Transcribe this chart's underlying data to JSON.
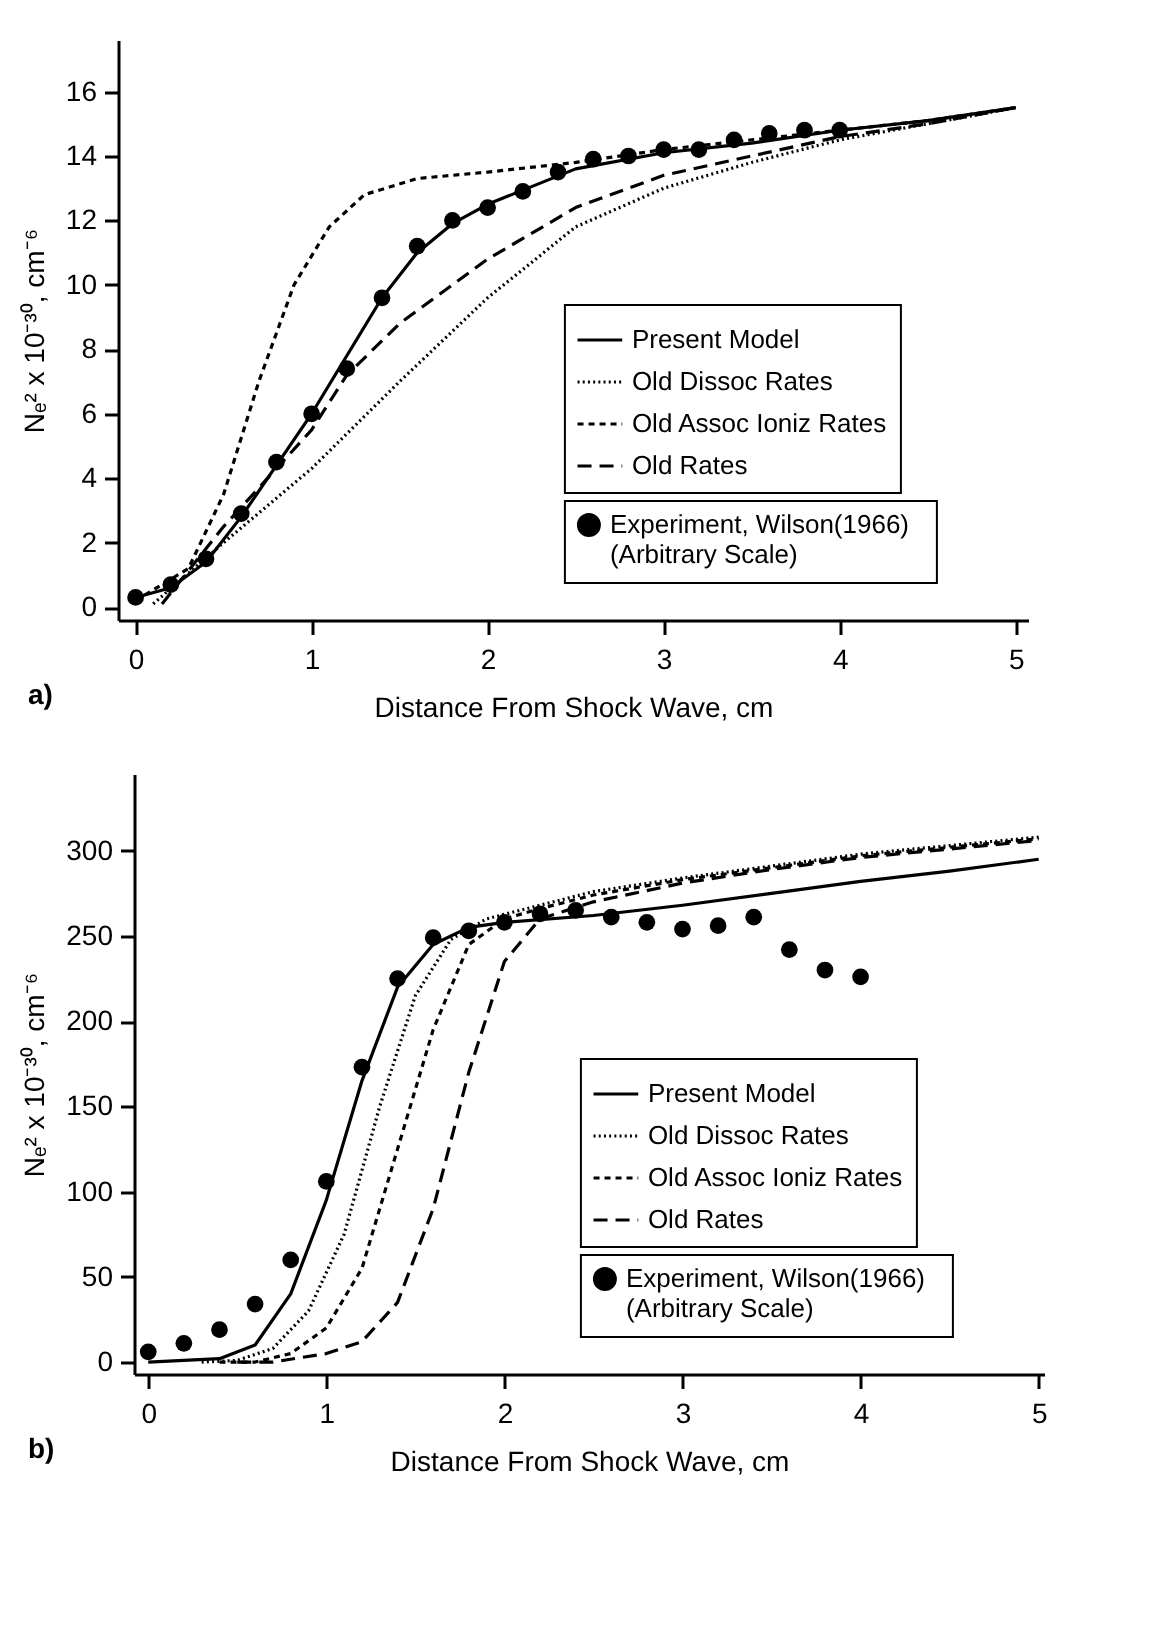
{
  "chart_data": [
    {
      "type": "line",
      "xlabel": "Distance From Shock Wave, cm",
      "ylabel": "Nₑ² x 10⁻³⁰, cm⁻⁶",
      "xlim": [
        -0.1,
        5.07
      ],
      "xticks": [
        0,
        1,
        2,
        3,
        4,
        5
      ],
      "ylim": [
        -0.4,
        17.6
      ],
      "yticks": [
        0,
        2,
        4,
        6,
        8,
        10,
        12,
        14,
        16
      ],
      "legend": "bottom right",
      "annotations": [
        "a)"
      ],
      "series": [
        {
          "name": "Present Model",
          "color": "#000000",
          "line_style": "solid",
          "x": [
            0,
            0.2,
            0.4,
            0.6,
            0.8,
            1.0,
            1.2,
            1.4,
            1.6,
            1.8,
            2.0,
            2.5,
            3.0,
            3.5,
            4.0,
            4.5,
            5.0
          ],
          "values": [
            0.3,
            0.6,
            1.4,
            2.8,
            4.4,
            6.0,
            7.8,
            9.6,
            11.0,
            11.9,
            12.5,
            13.6,
            14.1,
            14.4,
            14.8,
            15.1,
            15.5
          ]
        },
        {
          "name": "Old Dissoc Rates",
          "color": "#000000",
          "line_style": "dotted",
          "x": [
            0.1,
            0.5,
            1.0,
            1.5,
            2.0,
            2.5,
            3.0,
            3.5,
            4.0,
            4.5,
            5.0
          ],
          "values": [
            0.1,
            2.0,
            4.3,
            7.0,
            9.6,
            11.8,
            13.0,
            13.8,
            14.5,
            15.0,
            15.5
          ]
        },
        {
          "name": "Old Assoc Ioniz Rates",
          "color": "#000000",
          "line_style": "dashed",
          "x": [
            0,
            0.3,
            0.5,
            0.7,
            0.9,
            1.1,
            1.3,
            1.6,
            2.0,
            2.5,
            3.0,
            3.5,
            4.0,
            4.5,
            5.0
          ],
          "values": [
            0.2,
            1.2,
            3.5,
            7.0,
            10.0,
            11.8,
            12.8,
            13.3,
            13.5,
            13.8,
            14.2,
            14.5,
            14.8,
            15.1,
            15.5
          ]
        },
        {
          "name": "Old Rates",
          "color": "#000000",
          "line_style": "dashed",
          "x": [
            0.15,
            0.5,
            1.0,
            1.2,
            1.5,
            2.0,
            2.5,
            3.0,
            3.5,
            4.0,
            4.5,
            5.0
          ],
          "values": [
            0.1,
            2.5,
            5.5,
            7.2,
            8.8,
            10.8,
            12.4,
            13.4,
            14.0,
            14.6,
            15.0,
            15.5
          ]
        },
        {
          "name": "Experiment,   Wilson(1966)\n(Arbitrary Scale)",
          "type": "scatter",
          "marker": "circle",
          "color": "#000000",
          "x": [
            0,
            0.2,
            0.4,
            0.6,
            0.8,
            1.0,
            1.2,
            1.4,
            1.6,
            1.8,
            2.0,
            2.2,
            2.4,
            2.6,
            2.8,
            3.0,
            3.2,
            3.4,
            3.6,
            3.8,
            4.0
          ],
          "values": [
            0.3,
            0.7,
            1.5,
            2.9,
            4.5,
            6.0,
            7.4,
            9.6,
            11.2,
            12.0,
            12.4,
            12.9,
            13.5,
            13.9,
            14.0,
            14.2,
            14.2,
            14.5,
            14.7,
            14.8,
            14.8
          ]
        }
      ]
    },
    {
      "type": "line",
      "xlabel": "Distance From Shock Wave, cm",
      "ylabel": "Nₑ² x 10⁻³⁰, cm⁻⁶",
      "xlim": [
        -0.08,
        5.03
      ],
      "xticks": [
        0,
        1,
        2,
        3,
        4,
        5
      ],
      "ylim": [
        -7,
        345
      ],
      "yticks": [
        0,
        50,
        100,
        150,
        200,
        250,
        300
      ],
      "legend": "bottom right",
      "annotations": [
        "b)"
      ],
      "series": [
        {
          "name": "Present Model",
          "color": "#000000",
          "line_style": "solid",
          "x": [
            0,
            0.4,
            0.6,
            0.8,
            1.0,
            1.2,
            1.4,
            1.6,
            1.8,
            2.0,
            2.5,
            3.0,
            3.5,
            4.0,
            4.5,
            5.0
          ],
          "values": [
            0,
            2,
            10,
            40,
            95,
            165,
            220,
            245,
            255,
            258,
            262,
            268,
            275,
            282,
            288,
            295
          ]
        },
        {
          "name": "Old Dissoc Rates",
          "color": "#000000",
          "line_style": "dotted",
          "x": [
            0.3,
            0.5,
            0.7,
            0.9,
            1.1,
            1.3,
            1.5,
            1.7,
            1.9,
            2.2,
            2.5,
            3.0,
            3.5,
            4.0,
            4.5,
            5.0
          ],
          "values": [
            0,
            1,
            8,
            30,
            75,
            150,
            215,
            248,
            260,
            268,
            276,
            284,
            291,
            298,
            303,
            308
          ]
        },
        {
          "name": "Old Assoc Ioniz Rates",
          "color": "#000000",
          "line_style": "dashed",
          "x": [
            0.4,
            0.6,
            0.8,
            1.0,
            1.2,
            1.4,
            1.6,
            1.8,
            2.0,
            2.2,
            2.5,
            3.0,
            3.5,
            4.0,
            4.5,
            5.0
          ],
          "values": [
            0,
            0,
            5,
            20,
            55,
            125,
            195,
            245,
            260,
            266,
            274,
            283,
            290,
            297,
            302,
            307
          ]
        },
        {
          "name": "Old Rates",
          "color": "#000000",
          "line_style": "dashed",
          "x": [
            0.5,
            0.7,
            1.0,
            1.2,
            1.4,
            1.6,
            1.8,
            2.0,
            2.2,
            2.5,
            3.0,
            3.5,
            4.0,
            4.5,
            5.0
          ],
          "values": [
            0,
            0,
            5,
            12,
            35,
            90,
            170,
            235,
            260,
            270,
            281,
            289,
            296,
            301,
            306
          ]
        },
        {
          "name": "Experiment,   Wilson(1966)\n(Arbitrary Scale)",
          "type": "scatter",
          "marker": "circle",
          "color": "#000000",
          "x": [
            0,
            0.2,
            0.4,
            0.6,
            0.8,
            1.0,
            1.2,
            1.4,
            1.6,
            1.8,
            2.0,
            2.2,
            2.4,
            2.6,
            2.8,
            3.0,
            3.2,
            3.4,
            3.6,
            3.8,
            4.0
          ],
          "values": [
            6,
            11,
            19,
            34,
            60,
            106,
            173,
            225,
            249,
            253,
            258,
            263,
            265,
            261,
            258,
            254,
            256,
            261,
            242,
            230,
            226
          ]
        }
      ]
    }
  ]
}
